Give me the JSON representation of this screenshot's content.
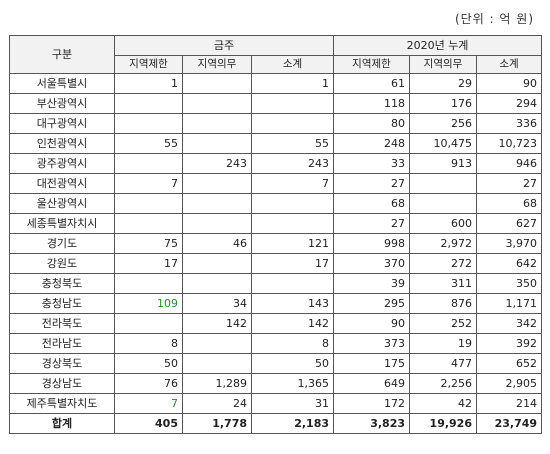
{
  "unit_note": "(단위 : 억  원)",
  "header": {
    "category": "구분",
    "group_left": "금주",
    "group_right": "2020년  누계",
    "sub": [
      "지역제한",
      "지역의무",
      "소계",
      "지역제한",
      "지역의무",
      "소계"
    ]
  },
  "rows": [
    {
      "region": "서울특별시",
      "v": [
        "1",
        "",
        "1",
        "61",
        "29",
        "90"
      ]
    },
    {
      "region": "부산광역시",
      "v": [
        "",
        "",
        "",
        "118",
        "176",
        "294"
      ]
    },
    {
      "region": "대구광역시",
      "v": [
        "",
        "",
        "",
        "80",
        "256",
        "336"
      ]
    },
    {
      "region": "인천광역시",
      "v": [
        "55",
        "",
        "55",
        "248",
        "10,475",
        "10,723"
      ]
    },
    {
      "region": "광주광역시",
      "v": [
        "",
        "243",
        "243",
        "33",
        "913",
        "946"
      ]
    },
    {
      "region": "대전광역시",
      "v": [
        "7",
        "",
        "7",
        "27",
        "",
        "27"
      ]
    },
    {
      "region": "울산광역시",
      "v": [
        "",
        "",
        "",
        "68",
        "",
        "68"
      ]
    },
    {
      "region": "세종특별자치시",
      "v": [
        "",
        "",
        "",
        "27",
        "600",
        "627"
      ]
    },
    {
      "region": "경기도",
      "v": [
        "75",
        "46",
        "121",
        "998",
        "2,972",
        "3,970"
      ]
    },
    {
      "region": "강원도",
      "v": [
        "17",
        "",
        "17",
        "370",
        "272",
        "642"
      ]
    },
    {
      "region": "충청북도",
      "v": [
        "",
        "",
        "",
        "39",
        "311",
        "350"
      ]
    },
    {
      "region": "충청남도",
      "v": [
        "109",
        "34",
        "143",
        "295",
        "876",
        "1,171"
      ]
    },
    {
      "region": "전라북도",
      "v": [
        "",
        "142",
        "142",
        "90",
        "252",
        "342"
      ]
    },
    {
      "region": "전라남도",
      "v": [
        "8",
        "",
        "8",
        "373",
        "19",
        "392"
      ]
    },
    {
      "region": "경상북도",
      "v": [
        "50",
        "",
        "50",
        "175",
        "477",
        "652"
      ]
    },
    {
      "region": "경상남도",
      "v": [
        "76",
        "1,289",
        "1,365",
        "649",
        "2,256",
        "2,905"
      ]
    },
    {
      "region": "제주특별자치도",
      "v": [
        "7",
        "24",
        "31",
        "172",
        "42",
        "214"
      ]
    }
  ],
  "total": {
    "region": "합계",
    "v": [
      "405",
      "1,778",
      "2,183",
      "3,823",
      "19,926",
      "23,749"
    ]
  },
  "colors": {
    "highlight_green": "#2e8b2e"
  }
}
